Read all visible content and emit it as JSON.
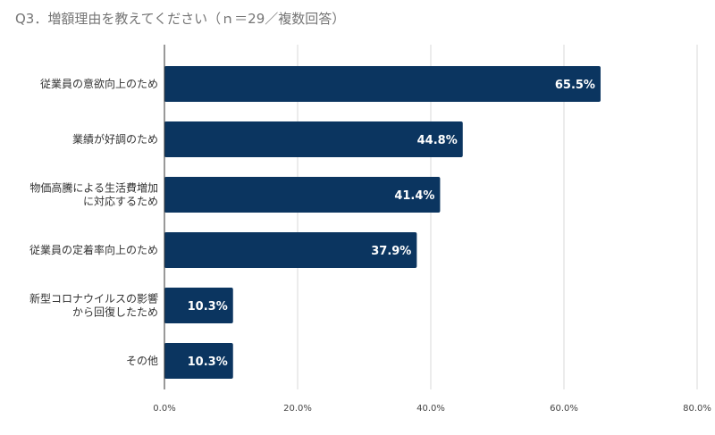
{
  "chart_data": {
    "type": "bar",
    "orientation": "horizontal",
    "title": "Q3．増額理由を教えてください（ｎ＝29／複数回答）",
    "categories": [
      [
        "従業員の意欲向上のため"
      ],
      [
        "業績が好調のため"
      ],
      [
        "物価高騰による生活費増加",
        "に対応するため"
      ],
      [
        "従業員の定着率向上のため"
      ],
      [
        "新型コロナウイルスの影響",
        "から回復したため"
      ],
      [
        "その他"
      ]
    ],
    "values": [
      65.5,
      44.8,
      41.4,
      37.9,
      10.3,
      10.3
    ],
    "data_labels": [
      "65.5%",
      "44.8%",
      "41.4%",
      "37.9%",
      "10.3%",
      "10.3%"
    ],
    "xlim": [
      0,
      80
    ],
    "xticks": [
      0,
      20,
      40,
      60,
      80
    ],
    "xtick_labels": [
      "0.0%",
      "20.0%",
      "40.0%",
      "60.0%",
      "80.0%"
    ],
    "xlabel": "",
    "ylabel": "",
    "grid": true,
    "bar_color": "#0b3560"
  }
}
